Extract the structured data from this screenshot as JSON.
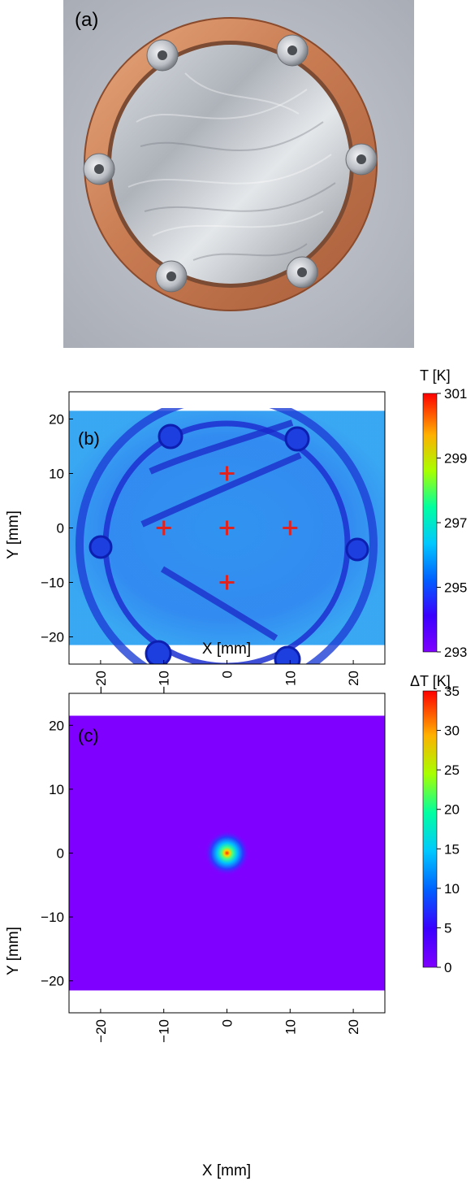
{
  "panels": {
    "a": {
      "label": "(a)"
    },
    "b": {
      "label": "(b)",
      "colorbar_title": "T [K]",
      "colorbar_ticks": [
        "301",
        "299",
        "297",
        "295",
        "293"
      ]
    },
    "c": {
      "label": "(c)",
      "colorbar_title": "ΔT [K]",
      "colorbar_ticks": [
        "35",
        "30",
        "25",
        "20",
        "15",
        "10",
        "5",
        "0"
      ]
    }
  },
  "chart_data": [
    {
      "type": "heatmap",
      "panel": "(b)",
      "xlabel": "X [mm]",
      "ylabel": "Y [mm]",
      "xlim": [
        -25,
        25
      ],
      "ylim": [
        -25,
        25
      ],
      "x_ticks": [
        -20,
        -10,
        0,
        10,
        20
      ],
      "y_ticks": [
        20,
        10,
        0,
        -10,
        -20
      ],
      "data_extent_y": [
        -21.5,
        21.5
      ],
      "colorbar": {
        "label": "T [K]",
        "min": 293,
        "max": 301,
        "ticks": [
          301,
          299,
          297,
          295,
          293
        ]
      },
      "colormap": "jet",
      "markers": [
        {
          "x": 0,
          "y": 10
        },
        {
          "x": -10,
          "y": 0
        },
        {
          "x": 0,
          "y": 0
        },
        {
          "x": 10,
          "y": 0
        },
        {
          "x": 0,
          "y": -10
        }
      ],
      "marker_color": "#e0231f",
      "marker_symbol": "+"
    },
    {
      "type": "heatmap",
      "panel": "(c)",
      "xlabel": "X [mm]",
      "ylabel": "Y [mm]",
      "xlim": [
        -25,
        25
      ],
      "ylim": [
        -25,
        25
      ],
      "x_ticks": [
        -20,
        -10,
        0,
        10,
        20
      ],
      "y_ticks": [
        20,
        10,
        0,
        -10,
        -20
      ],
      "data_extent_y": [
        -21.5,
        21.5
      ],
      "colorbar": {
        "label": "ΔT [K]",
        "min": 0,
        "max": 35,
        "ticks": [
          35,
          30,
          25,
          20,
          15,
          10,
          5,
          0
        ]
      },
      "colormap": "jet",
      "hotspot": {
        "x": 0,
        "y": 0
      },
      "background_color": "#8000ff"
    }
  ]
}
